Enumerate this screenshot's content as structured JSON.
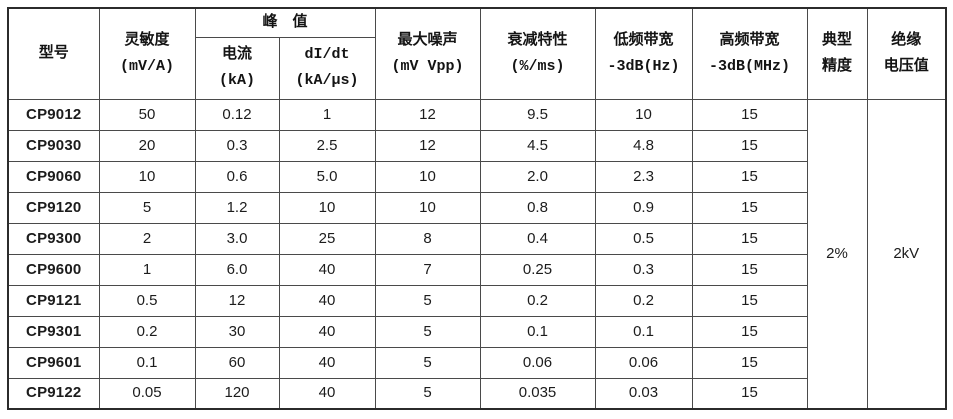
{
  "table": {
    "header": {
      "model": "型号",
      "sensitivity": "灵敏度\n(mV/A)",
      "peak": "峰　值",
      "peak_current": "电流\n(kA)",
      "peak_didt": "dI/dt\n(kA/μs)",
      "max_noise": "最大噪声\n(mV Vpp)",
      "attenuation": "衰减特性\n(%/ms)",
      "low_bandwidth": "低频带宽\n-3dB(Hz)",
      "high_bandwidth": "高频带宽\n-3dB(MHz)",
      "typical_accuracy": "典型\n精度",
      "insulation_voltage": "绝缘\n电压值"
    },
    "rows": [
      {
        "model": "CP9012",
        "sensitivity": "50",
        "peak_current": "0.12",
        "peak_didt": "1",
        "max_noise": "12",
        "attenuation": "9.5",
        "low_bandwidth": "10",
        "high_bandwidth": "15"
      },
      {
        "model": "CP9030",
        "sensitivity": "20",
        "peak_current": "0.3",
        "peak_didt": "2.5",
        "max_noise": "12",
        "attenuation": "4.5",
        "low_bandwidth": "4.8",
        "high_bandwidth": "15"
      },
      {
        "model": "CP9060",
        "sensitivity": "10",
        "peak_current": "0.6",
        "peak_didt": "5.0",
        "max_noise": "10",
        "attenuation": "2.0",
        "low_bandwidth": "2.3",
        "high_bandwidth": "15"
      },
      {
        "model": "CP9120",
        "sensitivity": "5",
        "peak_current": "1.2",
        "peak_didt": "10",
        "max_noise": "10",
        "attenuation": "0.8",
        "low_bandwidth": "0.9",
        "high_bandwidth": "15"
      },
      {
        "model": "CP9300",
        "sensitivity": "2",
        "peak_current": "3.0",
        "peak_didt": "25",
        "max_noise": "8",
        "attenuation": "0.4",
        "low_bandwidth": "0.5",
        "high_bandwidth": "15"
      },
      {
        "model": "CP9600",
        "sensitivity": "1",
        "peak_current": "6.0",
        "peak_didt": "40",
        "max_noise": "7",
        "attenuation": "0.25",
        "low_bandwidth": "0.3",
        "high_bandwidth": "15"
      },
      {
        "model": "CP9121",
        "sensitivity": "0.5",
        "peak_current": "12",
        "peak_didt": "40",
        "max_noise": "5",
        "attenuation": "0.2",
        "low_bandwidth": "0.2",
        "high_bandwidth": "15"
      },
      {
        "model": "CP9301",
        "sensitivity": "0.2",
        "peak_current": "30",
        "peak_didt": "40",
        "max_noise": "5",
        "attenuation": "0.1",
        "low_bandwidth": "0.1",
        "high_bandwidth": "15"
      },
      {
        "model": "CP9601",
        "sensitivity": "0.1",
        "peak_current": "60",
        "peak_didt": "40",
        "max_noise": "5",
        "attenuation": "0.06",
        "low_bandwidth": "0.06",
        "high_bandwidth": "15"
      },
      {
        "model": "CP9122",
        "sensitivity": "0.05",
        "peak_current": "120",
        "peak_didt": "40",
        "max_noise": "5",
        "attenuation": "0.035",
        "low_bandwidth": "0.03",
        "high_bandwidth": "15"
      }
    ],
    "typical_accuracy_value": "2%",
    "insulation_voltage_value": "2kV",
    "colors": {
      "border_inner": "#4a4a4a",
      "border_outer": "#2b2b2b",
      "text": "#1c1c1c",
      "background": "#ffffff"
    }
  }
}
